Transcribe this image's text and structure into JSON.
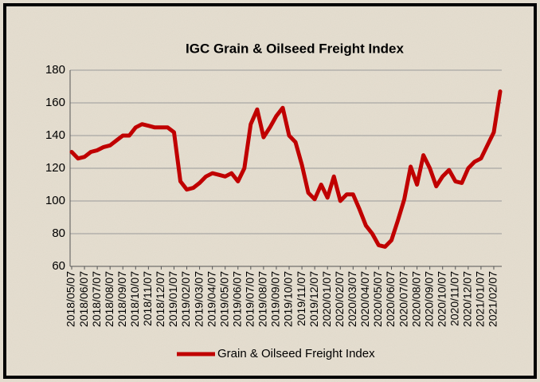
{
  "chart_data": {
    "type": "line",
    "title": "IGC Grain & Oilseed Freight Index",
    "categories": [
      "2018/05/07",
      null,
      "2018/06/07",
      null,
      "2018/07/07",
      null,
      "2018/08/07",
      null,
      "2018/09/07",
      null,
      "2018/10/07",
      null,
      "2018/11/07",
      null,
      "2018/12/07",
      null,
      "2019/01/07",
      null,
      "2019/02/07",
      null,
      "2019/03/07",
      null,
      "2019/04/07",
      null,
      "2019/05/07",
      null,
      "2019/06/07",
      null,
      "2019/07/07",
      null,
      "2019/08/07",
      null,
      "2019/09/07",
      null,
      "2019/10/07",
      null,
      "2019/11/07",
      null,
      "2019/12/07",
      null,
      "2020/01/07",
      null,
      "2020/02/07",
      null,
      "2020/03/07",
      null,
      "2020/04/07",
      null,
      "2020/05/07",
      null,
      "2020/06/07",
      null,
      "2020/07/07",
      null,
      "2020/08/07",
      null,
      "2020/09/07",
      null,
      "2020/10/07",
      null,
      "2020/11/07",
      null,
      "2020/12/07",
      null,
      "2021/01/07",
      null,
      "2021/02/07",
      null
    ],
    "series": [
      {
        "name": "Grain & Oilseed Freight Index",
        "color": "#c00000",
        "values": [
          130,
          126,
          127,
          130,
          131,
          133,
          134,
          137,
          140,
          140,
          145,
          147,
          146,
          145,
          145,
          145,
          142,
          112,
          107,
          108,
          111,
          115,
          117,
          116,
          115,
          117,
          112,
          120,
          147,
          156,
          139,
          145,
          152,
          157,
          140,
          136,
          122,
          105,
          101,
          110,
          102,
          115,
          100,
          104,
          104,
          95,
          85,
          80,
          73,
          72,
          76,
          88,
          101,
          121,
          110,
          128,
          120,
          109,
          115,
          119,
          112,
          111,
          120,
          124,
          126,
          134,
          142,
          167
        ]
      }
    ],
    "ylim": [
      60,
      180
    ],
    "yticks": [
      60,
      80,
      100,
      120,
      140,
      160,
      180
    ],
    "grid": true,
    "legend": "bottom"
  }
}
